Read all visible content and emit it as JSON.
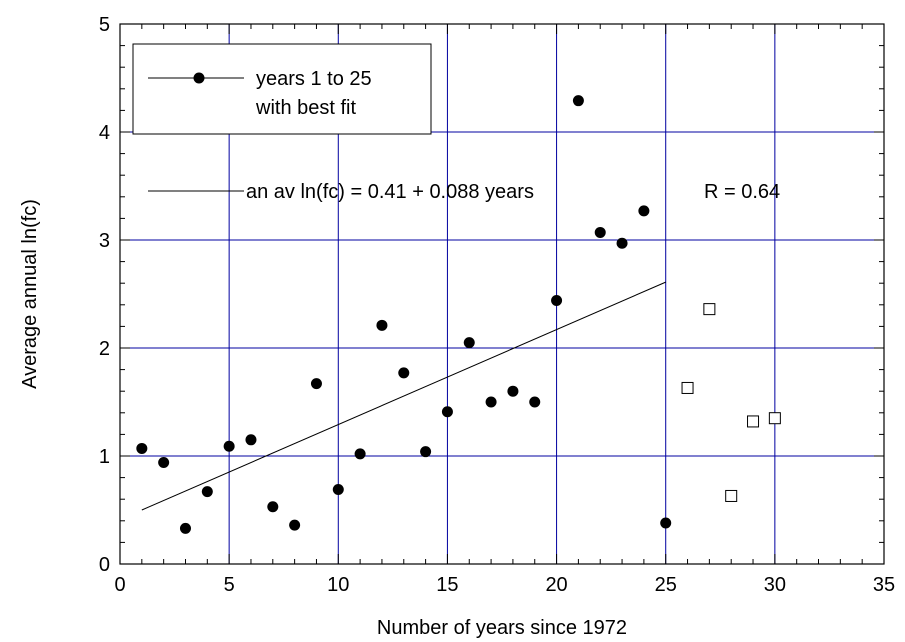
{
  "chart_data": {
    "type": "scatter",
    "title": "",
    "xlabel": "Number of years since 1972",
    "ylabel": "Average annual ln(fc)",
    "xlim": [
      0,
      35
    ],
    "ylim": [
      0,
      5
    ],
    "xticks": [
      "0",
      "5",
      "10",
      "15",
      "20",
      "25",
      "30",
      "35"
    ],
    "yticks": [
      "0",
      "1",
      "2",
      "3",
      "4",
      "5"
    ],
    "grid": true,
    "grid_color": "#0000a0",
    "series": [
      {
        "name": "years 1 to 25",
        "marker": "filled-circle",
        "color": "#000000",
        "x": [
          1,
          2,
          3,
          4,
          5,
          6,
          7,
          8,
          9,
          10,
          11,
          12,
          13,
          14,
          15,
          16,
          17,
          18,
          19,
          20,
          21,
          22,
          23,
          24,
          25
        ],
        "y": [
          1.07,
          0.94,
          0.33,
          0.67,
          1.09,
          1.15,
          0.53,
          0.36,
          1.67,
          0.69,
          1.02,
          2.21,
          1.77,
          1.04,
          1.41,
          2.05,
          1.5,
          1.6,
          1.5,
          2.44,
          4.29,
          3.07,
          2.97,
          3.27,
          0.38
        ]
      },
      {
        "marker": "open-square",
        "color": "#000000",
        "x": [
          26,
          27,
          28,
          29,
          30
        ],
        "y": [
          1.63,
          2.36,
          0.63,
          1.32,
          1.35
        ]
      }
    ],
    "fit_line": {
      "x": [
        1,
        25
      ],
      "y": [
        0.5,
        2.61
      ]
    },
    "legend": {
      "position": "top-left",
      "entry_line1": "years 1 to 25",
      "entry_line2": "with best fit"
    },
    "annotations": {
      "equation": "an av ln(fc) = 0.41 + 0.088 years",
      "r_value": "R = 0.64"
    }
  }
}
